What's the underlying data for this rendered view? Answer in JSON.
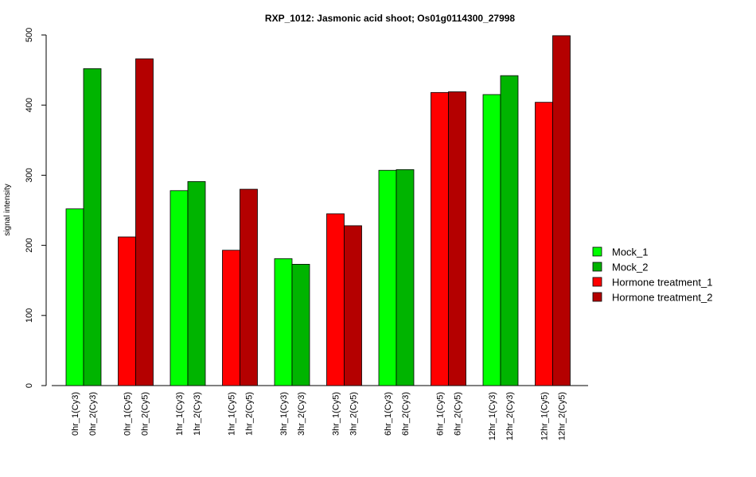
{
  "chart_data": {
    "type": "bar",
    "title": "RXP_1012: Jasmonic acid shoot; Os01g0114300_27998",
    "xlabel": "",
    "ylabel": "signal intensity",
    "ylim": [
      0,
      500
    ],
    "yticks": [
      0,
      100,
      200,
      300,
      400,
      500
    ],
    "grid": false,
    "legend_position": "right",
    "series": [
      {
        "name": "Mock_1",
        "color": "#00ff00"
      },
      {
        "name": "Mock_2",
        "color": "#00b400"
      },
      {
        "name": "Hormone treatment_1",
        "color": "#ff0000"
      },
      {
        "name": "Hormone treatment_2",
        "color": "#b40000"
      }
    ],
    "groups": [
      {
        "bars": [
          {
            "label": "0hr_1(Cy3)",
            "value": 252,
            "series": 0
          },
          {
            "label": "0hr_2(Cy3)",
            "value": 452,
            "series": 1
          }
        ]
      },
      {
        "bars": [
          {
            "label": "0hr_1(Cy5)",
            "value": 212,
            "series": 2
          },
          {
            "label": "0hr_2(Cy5)",
            "value": 466,
            "series": 3
          }
        ]
      },
      {
        "bars": [
          {
            "label": "1hr_1(Cy3)",
            "value": 278,
            "series": 0
          },
          {
            "label": "1hr_2(Cy3)",
            "value": 291,
            "series": 1
          }
        ]
      },
      {
        "bars": [
          {
            "label": "1hr_1(Cy5)",
            "value": 193,
            "series": 2
          },
          {
            "label": "1hr_2(Cy5)",
            "value": 280,
            "series": 3
          }
        ]
      },
      {
        "bars": [
          {
            "label": "3hr_1(Cy3)",
            "value": 181,
            "series": 0
          },
          {
            "label": "3hr_2(Cy3)",
            "value": 173,
            "series": 1
          }
        ]
      },
      {
        "bars": [
          {
            "label": "3hr_1(Cy5)",
            "value": 245,
            "series": 2
          },
          {
            "label": "3hr_2(Cy5)",
            "value": 228,
            "series": 3
          }
        ]
      },
      {
        "bars": [
          {
            "label": "6hr_1(Cy3)",
            "value": 307,
            "series": 0
          },
          {
            "label": "6hr_2(Cy3)",
            "value": 308,
            "series": 1
          }
        ]
      },
      {
        "bars": [
          {
            "label": "6hr_1(Cy5)",
            "value": 418,
            "series": 2
          },
          {
            "label": "6hr_2(Cy5)",
            "value": 419,
            "series": 3
          }
        ]
      },
      {
        "bars": [
          {
            "label": "12hr_1(Cy3)",
            "value": 415,
            "series": 0
          },
          {
            "label": "12hr_2(Cy3)",
            "value": 442,
            "series": 1
          }
        ]
      },
      {
        "bars": [
          {
            "label": "12hr_1(Cy5)",
            "value": 404,
            "series": 2
          },
          {
            "label": "12hr_2(Cy5)",
            "value": 499,
            "series": 3
          }
        ]
      }
    ]
  }
}
